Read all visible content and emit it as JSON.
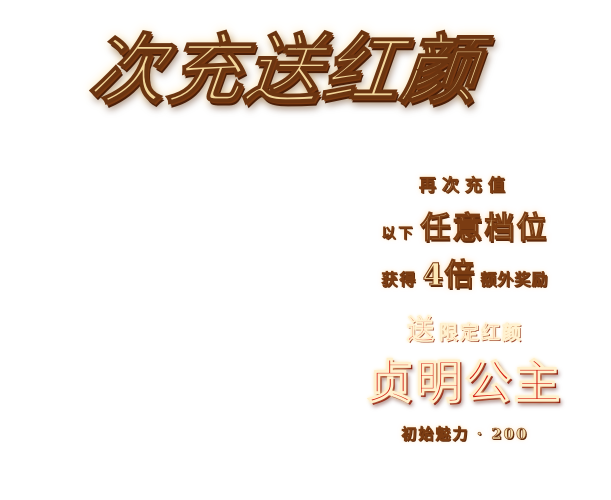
{
  "banner": {
    "headline": "次充送红颜",
    "promo": {
      "line1": "再次充值",
      "line2_prefix": "以下",
      "line2_emphasis": "任意档位",
      "line3_prefix": "获得",
      "line3_emphasis": "4倍",
      "line3_suffix": "额外奖励",
      "line4_first": "送",
      "line4_rest": "限定红颜",
      "hero_name": "贞明公主",
      "stat_label": "初始魅力",
      "stat_separator": "·",
      "stat_value": "200"
    },
    "colors": {
      "gold": "#f3d79b",
      "gold_outline": "#6b3410",
      "red": "#d41a0e",
      "background": "#ffffff"
    }
  }
}
